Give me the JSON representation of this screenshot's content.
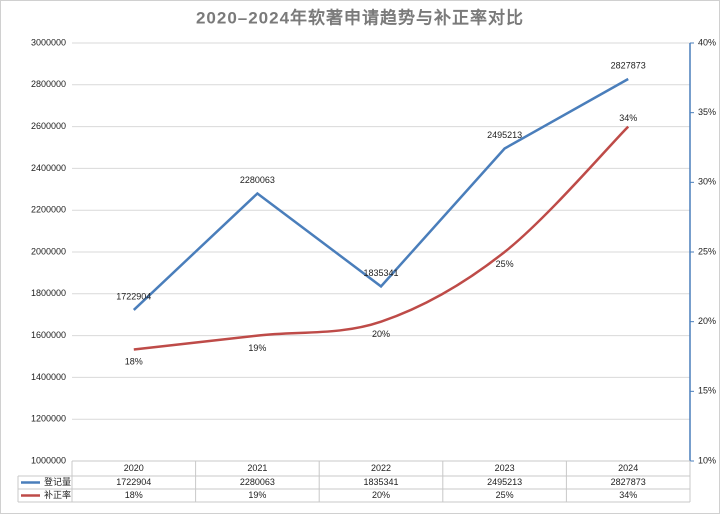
{
  "chart_data": {
    "type": "line",
    "title": "2020–2024年软著申请趋势与补正率对比",
    "categories": [
      "2020",
      "2021",
      "2022",
      "2023",
      "2024"
    ],
    "series": [
      {
        "name": "登记量",
        "color": "#4a7ebb",
        "values": [
          1722904,
          2280063,
          1835341,
          2495213,
          2827873
        ]
      },
      {
        "name": "补正率",
        "color": "#be4b48",
        "axis": "y2",
        "smooth": true,
        "values": [
          18,
          19,
          20,
          25,
          34
        ],
        "value_labels": [
          "18%",
          "19%",
          "20%",
          "25%",
          "34%"
        ]
      }
    ],
    "ylim": [
      1000000,
      3000000
    ],
    "yticks": [
      1000000,
      1200000,
      1400000,
      1600000,
      1800000,
      2000000,
      2200000,
      2400000,
      2600000,
      2800000,
      3000000
    ],
    "y2lim": [
      10,
      40
    ],
    "y2ticks": [
      {
        "value": 10,
        "label": "10%"
      },
      {
        "value": 15,
        "label": "15%"
      },
      {
        "value": 20,
        "label": "20%"
      },
      {
        "value": 25,
        "label": "25%"
      },
      {
        "value": 30,
        "label": "30%"
      },
      {
        "value": 35,
        "label": "35%"
      },
      {
        "value": 40,
        "label": "40%"
      }
    ],
    "grid": true
  }
}
